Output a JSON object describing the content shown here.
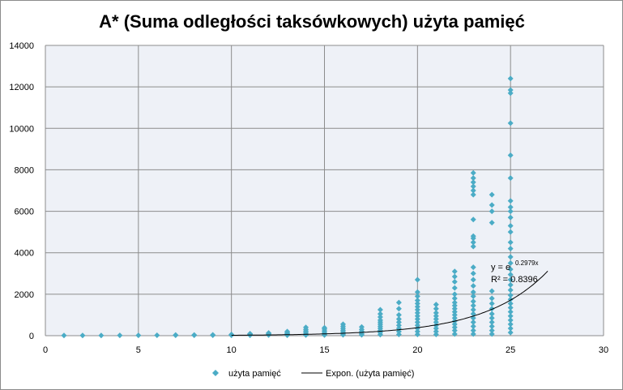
{
  "chart_data": {
    "type": "scatter",
    "title": "A* (Suma odległości taksówkowych) użyta pamięć",
    "xlabel": "",
    "ylabel": "",
    "xlim": [
      0,
      30
    ],
    "ylim": [
      0,
      14000
    ],
    "x_ticks": [
      "0",
      "5",
      "10",
      "15",
      "20",
      "25",
      "30"
    ],
    "y_ticks": [
      "0",
      "2000",
      "4000",
      "6000",
      "8000",
      "10000",
      "12000",
      "14000"
    ],
    "grid": true,
    "legend_position": "bottom",
    "colors": {
      "marker": "#4bacc6",
      "trendline": "#000000",
      "plot_background": "#eef1f7",
      "grid": "#8c8c8c"
    },
    "series": [
      {
        "name": "użyta pamięć",
        "marker": "diamond",
        "points": [
          [
            1,
            10
          ],
          [
            2,
            10
          ],
          [
            3,
            10
          ],
          [
            4,
            15
          ],
          [
            5,
            15
          ],
          [
            6,
            20
          ],
          [
            7,
            20
          ],
          [
            7,
            35
          ],
          [
            8,
            20
          ],
          [
            8,
            35
          ],
          [
            9,
            20
          ],
          [
            9,
            40
          ],
          [
            10,
            20
          ],
          [
            10,
            40
          ],
          [
            10,
            60
          ],
          [
            11,
            20
          ],
          [
            11,
            50
          ],
          [
            11,
            80
          ],
          [
            11,
            100
          ],
          [
            12,
            30
          ],
          [
            12,
            60
          ],
          [
            12,
            100
          ],
          [
            12,
            130
          ],
          [
            13,
            20
          ],
          [
            13,
            60
          ],
          [
            13,
            100
          ],
          [
            13,
            150
          ],
          [
            13,
            200
          ],
          [
            14,
            30
          ],
          [
            14,
            80
          ],
          [
            14,
            150
          ],
          [
            14,
            220
          ],
          [
            14,
            300
          ],
          [
            14,
            400
          ],
          [
            15,
            30
          ],
          [
            15,
            80
          ],
          [
            15,
            150
          ],
          [
            15,
            230
          ],
          [
            15,
            320
          ],
          [
            15,
            380
          ],
          [
            16,
            40
          ],
          [
            16,
            100
          ],
          [
            16,
            180
          ],
          [
            16,
            260
          ],
          [
            16,
            350
          ],
          [
            16,
            450
          ],
          [
            16,
            550
          ],
          [
            17,
            40
          ],
          [
            17,
            100
          ],
          [
            17,
            200
          ],
          [
            17,
            300
          ],
          [
            17,
            420
          ],
          [
            18,
            50
          ],
          [
            18,
            150
          ],
          [
            18,
            250
          ],
          [
            18,
            350
          ],
          [
            18,
            450
          ],
          [
            18,
            550
          ],
          [
            18,
            650
          ],
          [
            18,
            750
          ],
          [
            18,
            900
          ],
          [
            18,
            1050
          ],
          [
            18,
            1250
          ],
          [
            19,
            60
          ],
          [
            19,
            200
          ],
          [
            19,
            350
          ],
          [
            19,
            500
          ],
          [
            19,
            650
          ],
          [
            19,
            800
          ],
          [
            19,
            1000
          ],
          [
            19,
            1300
          ],
          [
            19,
            1600
          ],
          [
            20,
            60
          ],
          [
            20,
            200
          ],
          [
            20,
            350
          ],
          [
            20,
            500
          ],
          [
            20,
            650
          ],
          [
            20,
            800
          ],
          [
            20,
            950
          ],
          [
            20,
            1100
          ],
          [
            20,
            1250
          ],
          [
            20,
            1400
          ],
          [
            20,
            1550
          ],
          [
            20,
            1700
          ],
          [
            20,
            1900
          ],
          [
            20,
            2100
          ],
          [
            20,
            2700
          ],
          [
            21,
            60
          ],
          [
            21,
            200
          ],
          [
            21,
            350
          ],
          [
            21,
            500
          ],
          [
            21,
            650
          ],
          [
            21,
            800
          ],
          [
            21,
            950
          ],
          [
            21,
            1100
          ],
          [
            21,
            1300
          ],
          [
            21,
            1500
          ],
          [
            22,
            80
          ],
          [
            22,
            250
          ],
          [
            22,
            400
          ],
          [
            22,
            550
          ],
          [
            22,
            700
          ],
          [
            22,
            850
          ],
          [
            22,
            1000
          ],
          [
            22,
            1150
          ],
          [
            22,
            1300
          ],
          [
            22,
            1450
          ],
          [
            22,
            1600
          ],
          [
            22,
            1800
          ],
          [
            22,
            2000
          ],
          [
            22,
            2300
          ],
          [
            22,
            2600
          ],
          [
            22,
            2850
          ],
          [
            22,
            3100
          ],
          [
            23,
            80
          ],
          [
            23,
            250
          ],
          [
            23,
            450
          ],
          [
            23,
            650
          ],
          [
            23,
            850
          ],
          [
            23,
            1050
          ],
          [
            23,
            1250
          ],
          [
            23,
            1450
          ],
          [
            23,
            1650
          ],
          [
            23,
            1900
          ],
          [
            23,
            2100
          ],
          [
            23,
            2400
          ],
          [
            23,
            2700
          ],
          [
            23,
            3000
          ],
          [
            23,
            3300
          ],
          [
            23,
            4300
          ],
          [
            23,
            4500
          ],
          [
            23,
            4700
          ],
          [
            23,
            4800
          ],
          [
            23,
            5600
          ],
          [
            23,
            6800
          ],
          [
            23,
            7000
          ],
          [
            23,
            7200
          ],
          [
            23,
            7400
          ],
          [
            23,
            7600
          ],
          [
            23,
            7850
          ],
          [
            24,
            80
          ],
          [
            24,
            250
          ],
          [
            24,
            450
          ],
          [
            24,
            650
          ],
          [
            24,
            850
          ],
          [
            24,
            1050
          ],
          [
            24,
            1300
          ],
          [
            24,
            1550
          ],
          [
            24,
            1800
          ],
          [
            24,
            2150
          ],
          [
            24,
            5450
          ],
          [
            24,
            6000
          ],
          [
            24,
            6300
          ],
          [
            24,
            6800
          ],
          [
            25,
            150
          ],
          [
            25,
            350
          ],
          [
            25,
            550
          ],
          [
            25,
            750
          ],
          [
            25,
            950
          ],
          [
            25,
            1150
          ],
          [
            25,
            1350
          ],
          [
            25,
            1550
          ],
          [
            25,
            1750
          ],
          [
            25,
            1950
          ],
          [
            25,
            2200
          ],
          [
            25,
            2450
          ],
          [
            25,
            2700
          ],
          [
            25,
            2950
          ],
          [
            25,
            3200
          ],
          [
            25,
            3500
          ],
          [
            25,
            3800
          ],
          [
            25,
            4200
          ],
          [
            25,
            4500
          ],
          [
            25,
            5000
          ],
          [
            25,
            5300
          ],
          [
            25,
            5700
          ],
          [
            25,
            6000
          ],
          [
            25,
            6200
          ],
          [
            25,
            6500
          ],
          [
            25,
            7600
          ],
          [
            25,
            8700
          ],
          [
            25,
            10250
          ],
          [
            25,
            11700
          ],
          [
            25,
            11850
          ],
          [
            25,
            12400
          ]
        ]
      },
      {
        "name": "Expon. (użyta pamięć)",
        "kind": "exponential_trendline",
        "equation": {
          "base": "y = e",
          "exponent": "0.2979x"
        },
        "r_squared_label": "R² = 0.8396",
        "coefficient": 0.2979,
        "x_range": [
          10,
          27
        ]
      }
    ]
  }
}
